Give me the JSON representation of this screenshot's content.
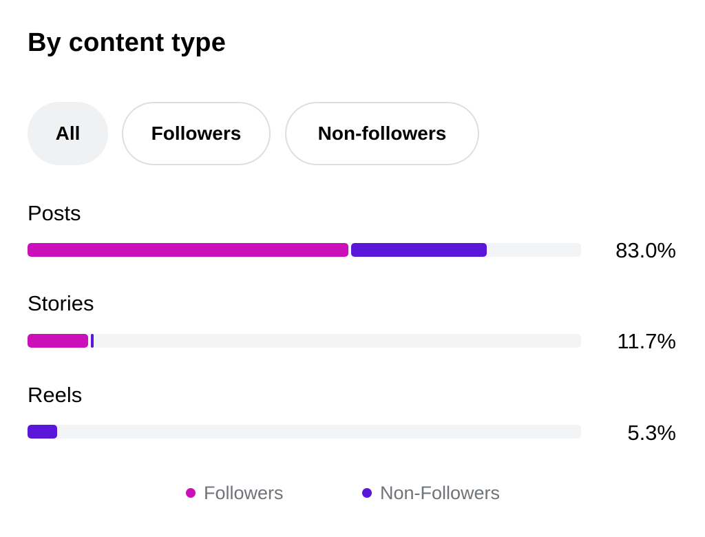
{
  "title": "By content type",
  "filters": {
    "all": "All",
    "followers": "Followers",
    "non_followers": "Non-followers",
    "selected": "All"
  },
  "rows": [
    {
      "label": "Posts",
      "percent": "83.0%",
      "followers_share": 58.0,
      "non_followers_share": 25.0
    },
    {
      "label": "Stories",
      "percent": "11.7%",
      "followers_share": 10.9,
      "non_followers_share": 0.8
    },
    {
      "label": "Reels",
      "percent": "5.3%",
      "followers_share": 0.0,
      "non_followers_share": 5.3
    }
  ],
  "legend": {
    "followers": "Followers",
    "non_followers": "Non-Followers"
  },
  "colors": {
    "followers": "#cc10b9",
    "non_followers": "#5a16d9",
    "track": "#f2f4f6",
    "chip_active_bg": "#eff1f3",
    "legend_text": "#6e7479"
  }
}
